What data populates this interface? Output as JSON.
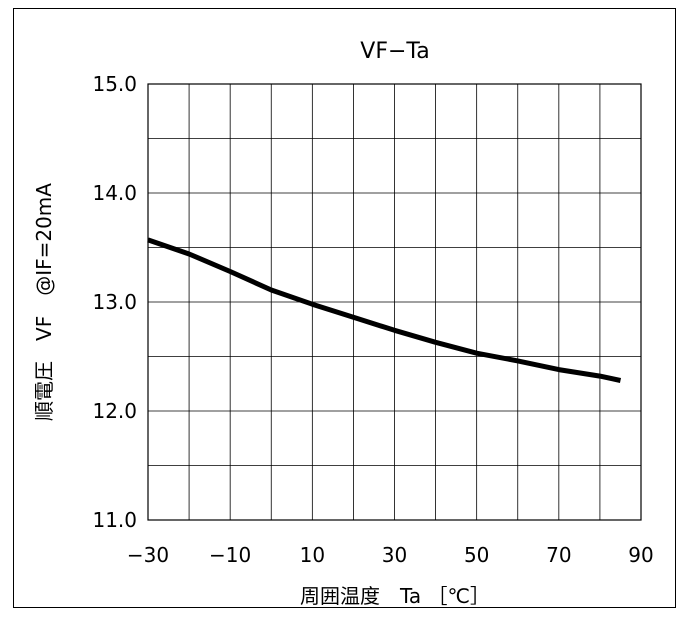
{
  "chart_data": {
    "type": "line",
    "title": "VF−Ta",
    "xlabel": "周囲温度　Ta ［℃］",
    "ylabel": "順電圧　VF　@IF=20mA",
    "xlim": [
      -30,
      90
    ],
    "ylim": [
      11.0,
      15.0
    ],
    "x_ticks": [
      -30,
      -10,
      10,
      30,
      50,
      70,
      90
    ],
    "x_tick_labels": [
      "−30",
      "−10",
      "10",
      "30",
      "50",
      "70",
      "90"
    ],
    "y_ticks": [
      11.0,
      12.0,
      13.0,
      14.0,
      15.0
    ],
    "y_tick_labels": [
      "11.0",
      "12.0",
      "13.0",
      "14.0",
      "15.0"
    ],
    "x_grid_step": 10,
    "y_grid_step": 0.5,
    "grid": true,
    "series": [
      {
        "x": [
          -30,
          -20,
          -10,
          0,
          10,
          20,
          30,
          40,
          50,
          60,
          70,
          80,
          85
        ],
        "values": [
          13.57,
          13.44,
          13.28,
          13.11,
          12.98,
          12.86,
          12.74,
          12.63,
          12.53,
          12.46,
          12.38,
          12.32,
          12.28
        ]
      }
    ]
  }
}
